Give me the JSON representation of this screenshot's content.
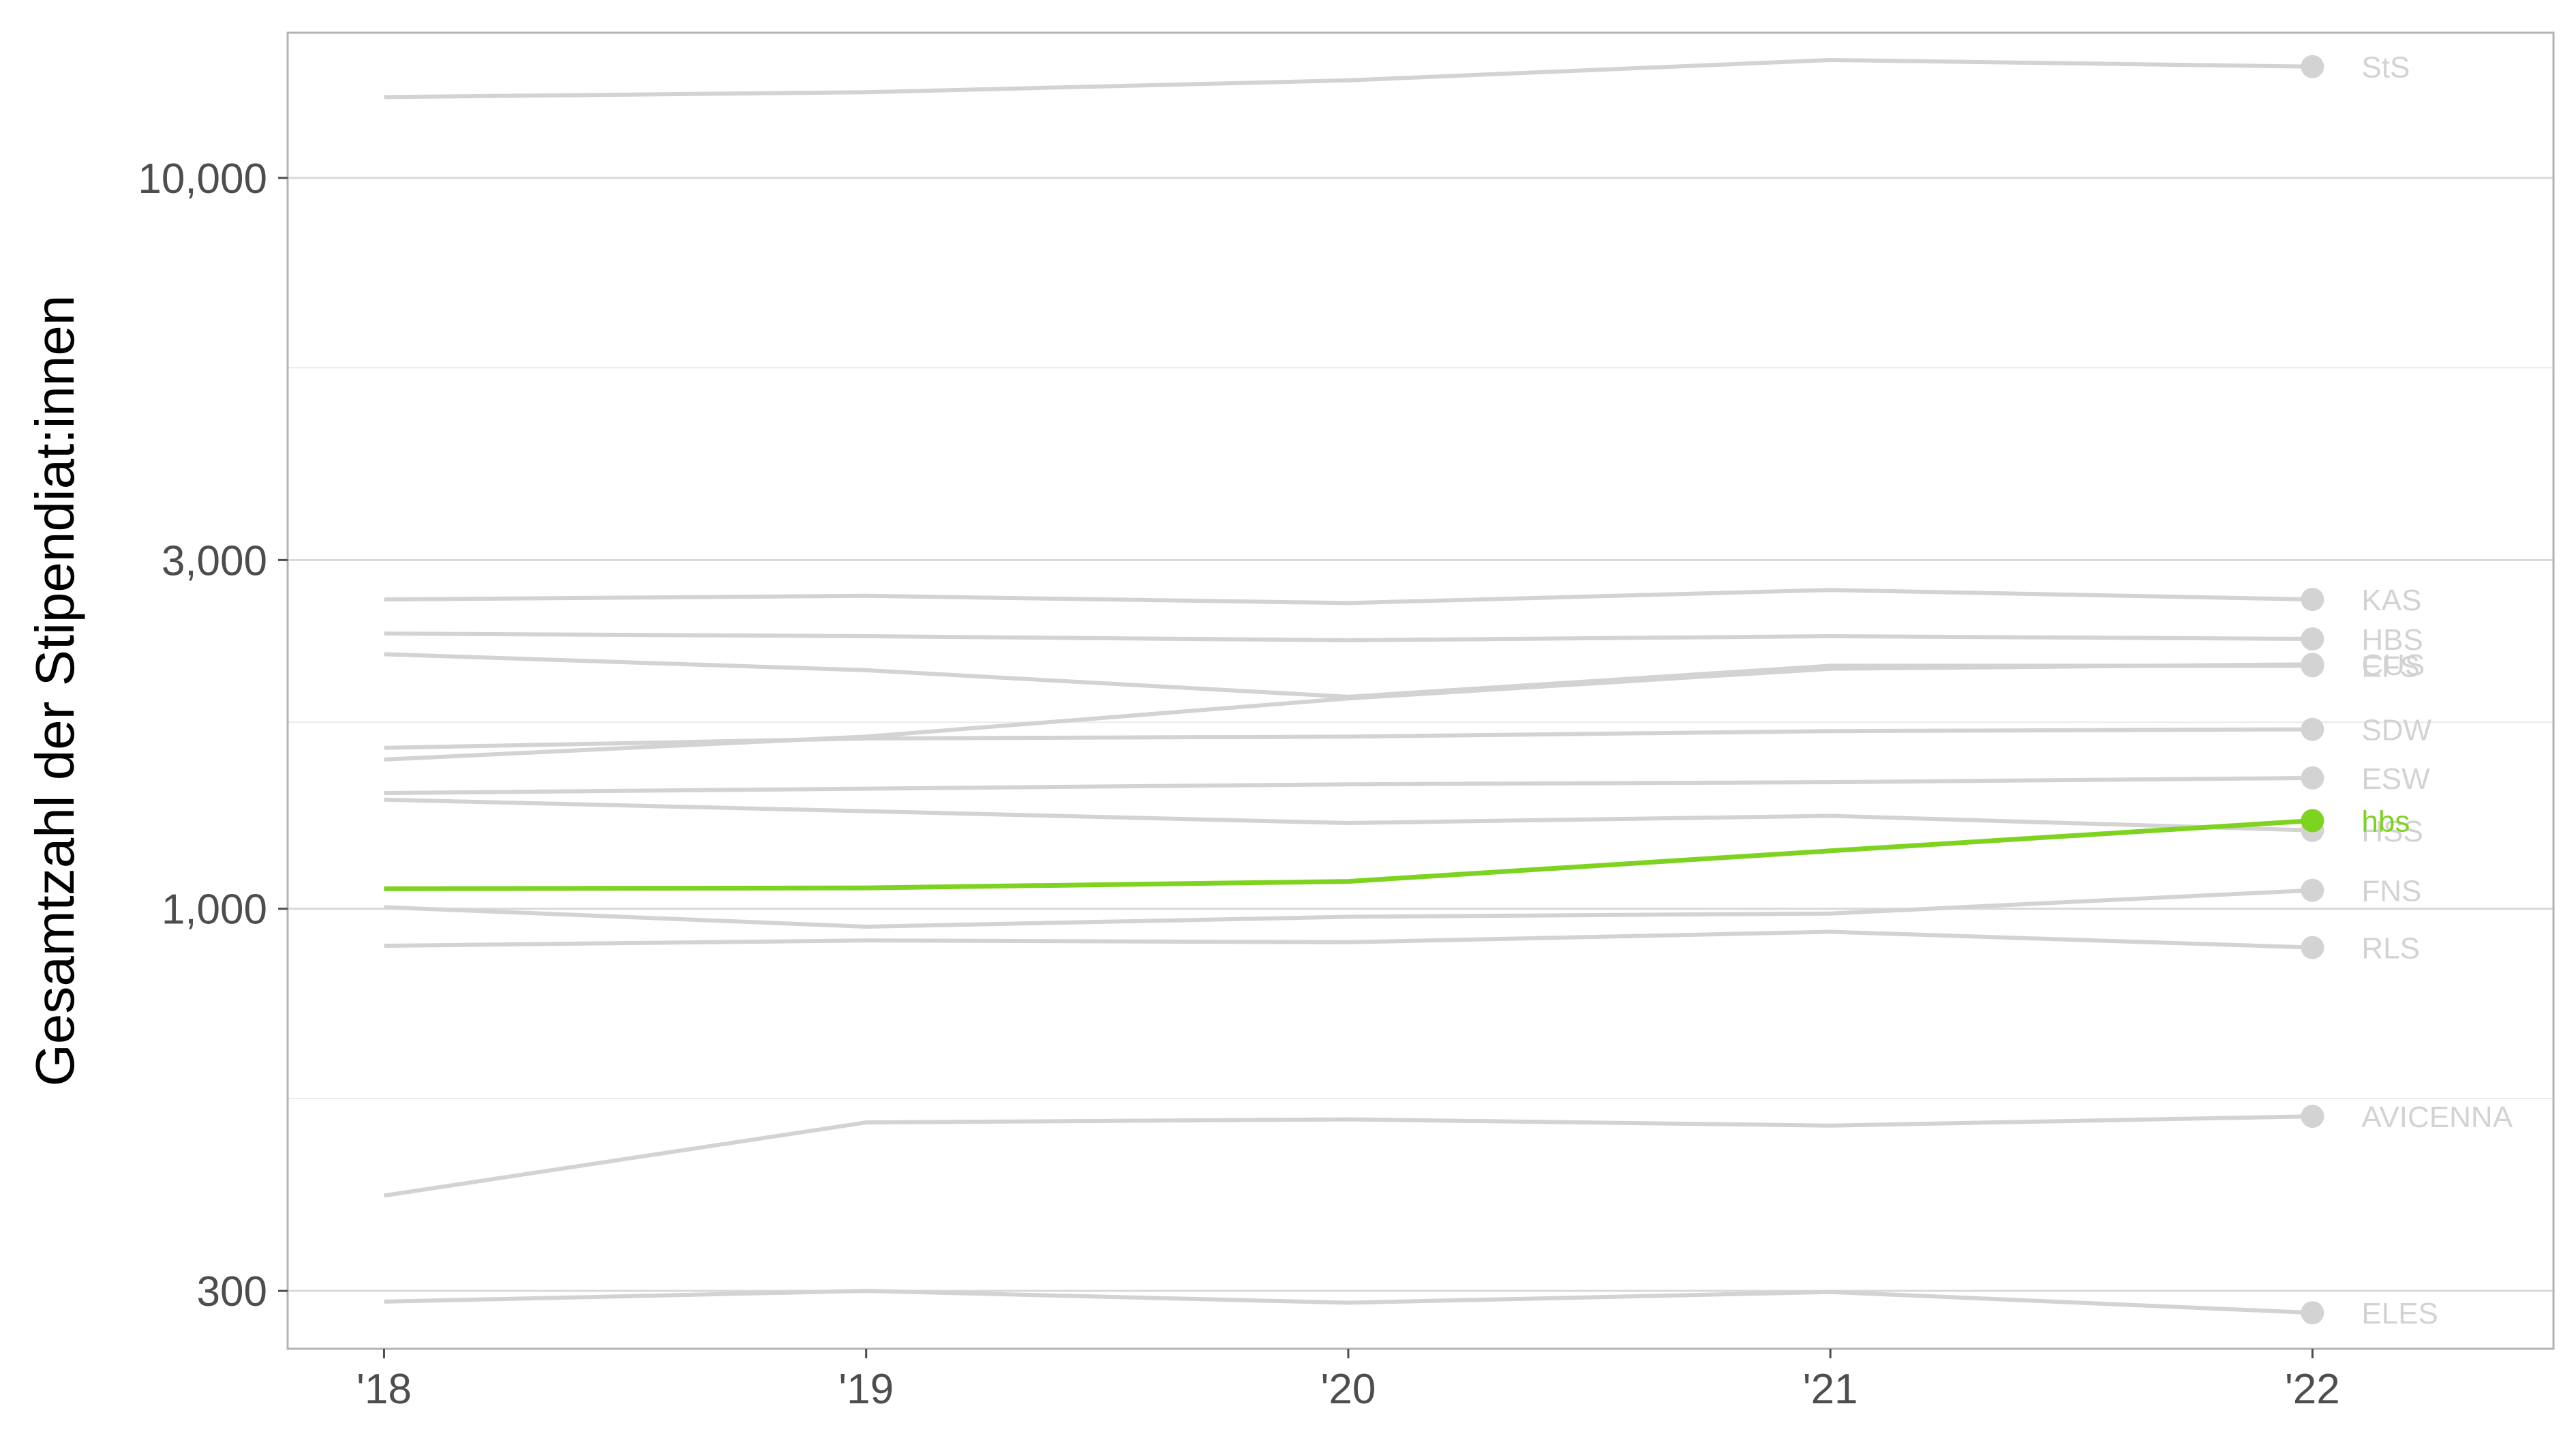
{
  "chart_data": {
    "type": "line",
    "title": "",
    "xlabel": "",
    "ylabel": "Gesamtzahl der Stipendiat:innen",
    "y_scale": "log",
    "ylim": [
      250,
      15800
    ],
    "xlim": [
      2017.8,
      2022.5
    ],
    "x": [
      2018,
      2019,
      2020,
      2021,
      2022
    ],
    "x_tick_labels": [
      "'18",
      "'19",
      "'20",
      "'21",
      "'22"
    ],
    "y_ticks": [
      300,
      1000,
      3000,
      10000
    ],
    "y_tick_labels": [
      "300",
      "1,000",
      "3,000",
      "10,000"
    ],
    "y_minor_gridlines": [
      550,
      1800,
      5500
    ],
    "grid": true,
    "legend": "direct labels at right end of each line",
    "highlight_color": "#7ed321",
    "muted_color": "#d3d3d3",
    "series": [
      {
        "name": "StS",
        "values": [
          12900,
          13100,
          13600,
          14500,
          14200
        ],
        "highlight": false
      },
      {
        "name": "KAS",
        "values": [
          2650,
          2680,
          2620,
          2730,
          2650
        ],
        "highlight": false
      },
      {
        "name": "HBS",
        "values": [
          2380,
          2360,
          2330,
          2360,
          2340
        ],
        "highlight": false
      },
      {
        "name": "CUS",
        "values": [
          1600,
          1720,
          1940,
          2130,
          2160
        ],
        "highlight": false
      },
      {
        "name": "EFS",
        "values": [
          2230,
          2120,
          1950,
          2150,
          2150
        ],
        "highlight": false
      },
      {
        "name": "SDW",
        "values": [
          1660,
          1710,
          1720,
          1750,
          1760
        ],
        "highlight": false
      },
      {
        "name": "ESW",
        "values": [
          1440,
          1460,
          1480,
          1490,
          1510
        ],
        "highlight": false
      },
      {
        "name": "HSS",
        "values": [
          1410,
          1360,
          1310,
          1340,
          1280
        ],
        "highlight": false
      },
      {
        "name": "hbs",
        "values": [
          1065,
          1068,
          1090,
          1200,
          1320
        ],
        "highlight": true
      },
      {
        "name": "FNS",
        "values": [
          1005,
          945,
          975,
          985,
          1060
        ],
        "highlight": false
      },
      {
        "name": "RLS",
        "values": [
          890,
          905,
          900,
          930,
          885
        ],
        "highlight": false
      },
      {
        "name": "AVICENNA",
        "values": [
          405,
          510,
          515,
          505,
          520
        ],
        "highlight": false
      },
      {
        "name": "ELES",
        "values": [
          290,
          300,
          289,
          299,
          280
        ],
        "highlight": false
      }
    ]
  }
}
